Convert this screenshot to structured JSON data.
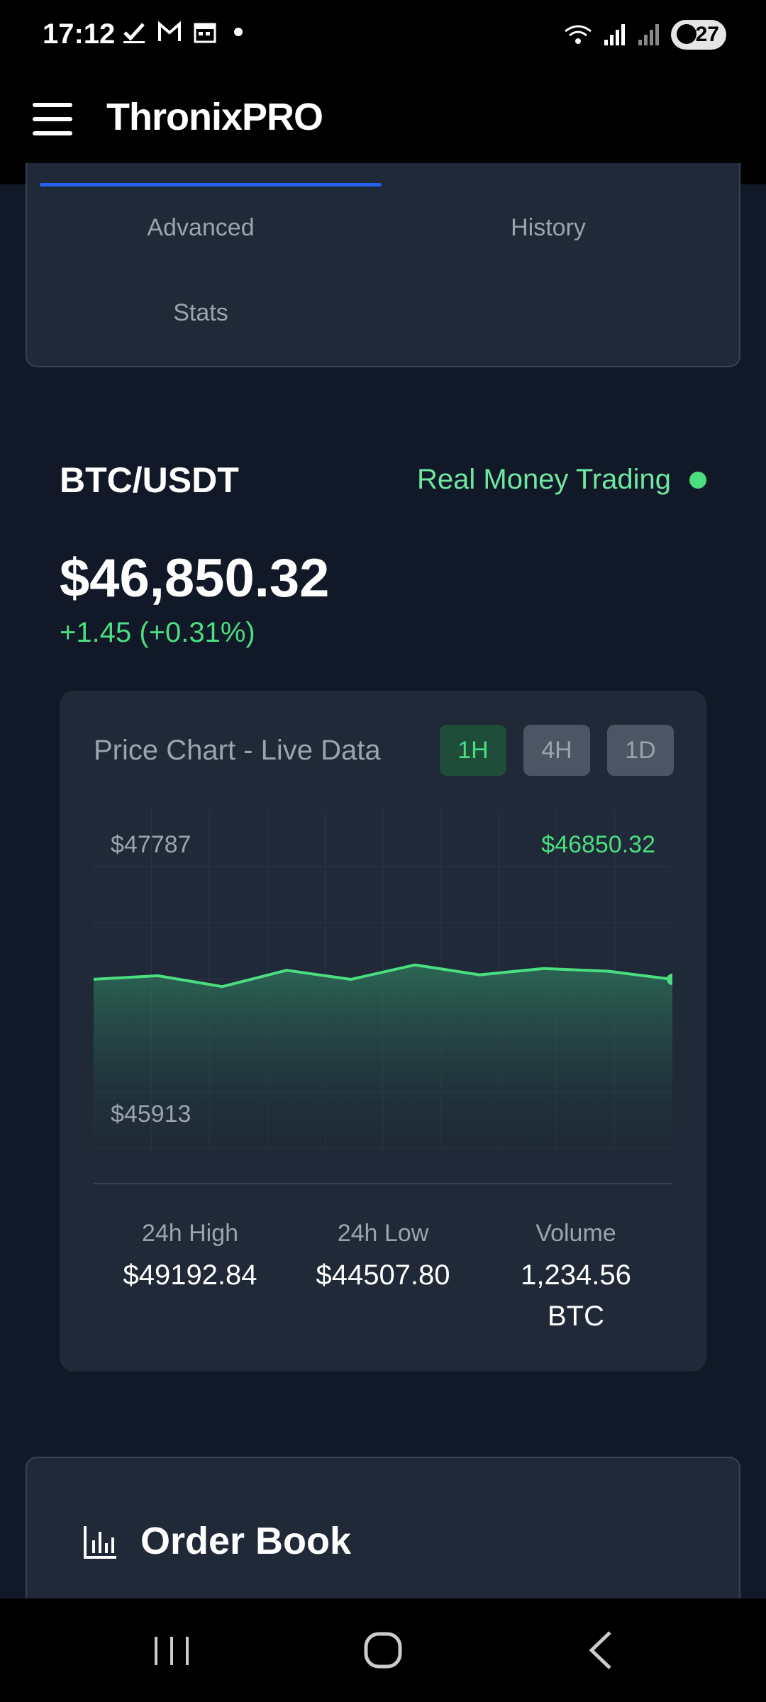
{
  "status_bar": {
    "time": "17:12",
    "battery": "27",
    "icons": [
      "check-icon",
      "gmail-icon",
      "calendar-icon",
      "notification-dot",
      "wifi-icon",
      "signal-icon",
      "signal-weak-icon",
      "battery-icon"
    ]
  },
  "app": {
    "title": "ThronixPRO"
  },
  "tabs": {
    "advanced": "Advanced",
    "history": "History",
    "stats": "Stats"
  },
  "pair": {
    "symbol": "BTC/USDT",
    "mode": "Real Money Trading",
    "price": "$46,850.32",
    "change": "+1.45 (+0.31%)"
  },
  "chart": {
    "title": "Price Chart - Live Data",
    "timeframes": [
      "1H",
      "4H",
      "1D"
    ],
    "selected_timeframe": "1H",
    "y_max_label": "$47787",
    "y_min_label": "$45913",
    "current_label": "$46850.32"
  },
  "chart_data": {
    "type": "area",
    "title": "Price Chart - Live Data",
    "ylim": [
      45913,
      47787
    ],
    "x": [
      0,
      1,
      2,
      3,
      4,
      5,
      6,
      7,
      8,
      9
    ],
    "values": [
      46850.32,
      46870,
      46810,
      46900,
      46850,
      46930,
      46875,
      46910,
      46895,
      46850.32
    ],
    "series": [
      {
        "name": "BTC/USDT",
        "color": "#4ade80"
      }
    ],
    "grid": true
  },
  "stats": {
    "high_label": "24h High",
    "high_value": "$49192.84",
    "low_label": "24h Low",
    "low_value": "$44507.80",
    "volume_label": "Volume",
    "volume_value": "1,234.56 BTC"
  },
  "order_book": {
    "title": "Order Book"
  },
  "colors": {
    "background": "#111827",
    "card": "#1f2937",
    "accent_green": "#4ade80",
    "accent_blue": "#2563eb"
  }
}
